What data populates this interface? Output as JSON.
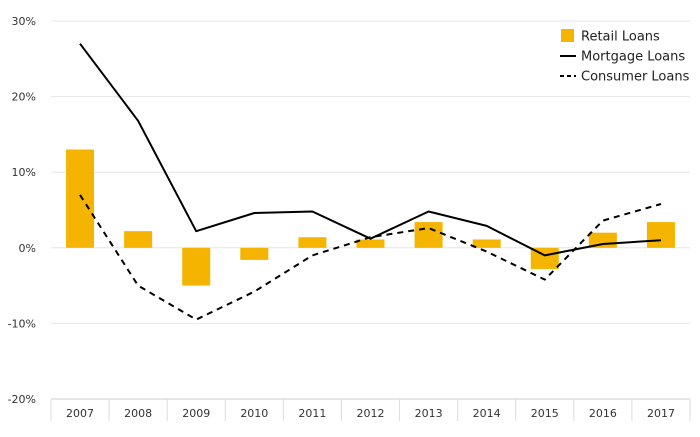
{
  "chart_data": {
    "type": "bar",
    "categories": [
      "2007",
      "2008",
      "2009",
      "2010",
      "2011",
      "2012",
      "2013",
      "2014",
      "2015",
      "2016",
      "2017"
    ],
    "ylim": [
      -20,
      30
    ],
    "yticks": [
      -20,
      -10,
      0,
      10,
      20,
      30
    ],
    "ytick_labels": [
      "-20%",
      "-10%",
      "0%",
      "10%",
      "20%",
      "30%"
    ],
    "grid": true,
    "legend_position": "top-right",
    "series": [
      {
        "name": "Retail Loans",
        "type": "bar",
        "color": "#f5b400",
        "values": [
          13.0,
          2.2,
          -5.0,
          -1.6,
          1.4,
          1.1,
          3.4,
          1.1,
          -2.8,
          2.0,
          3.4
        ]
      },
      {
        "name": "Mortgage Loans",
        "type": "line",
        "style": "solid",
        "color": "#000000",
        "values": [
          27.0,
          16.8,
          2.2,
          4.6,
          4.8,
          1.2,
          4.8,
          2.9,
          -1.0,
          0.5,
          1.0
        ]
      },
      {
        "name": "Consumer Loans",
        "type": "line",
        "style": "dashed",
        "color": "#000000",
        "values": [
          7.0,
          -5.0,
          -9.5,
          -5.8,
          -1.0,
          1.4,
          2.6,
          -0.5,
          -4.2,
          3.6,
          5.8
        ]
      }
    ]
  }
}
